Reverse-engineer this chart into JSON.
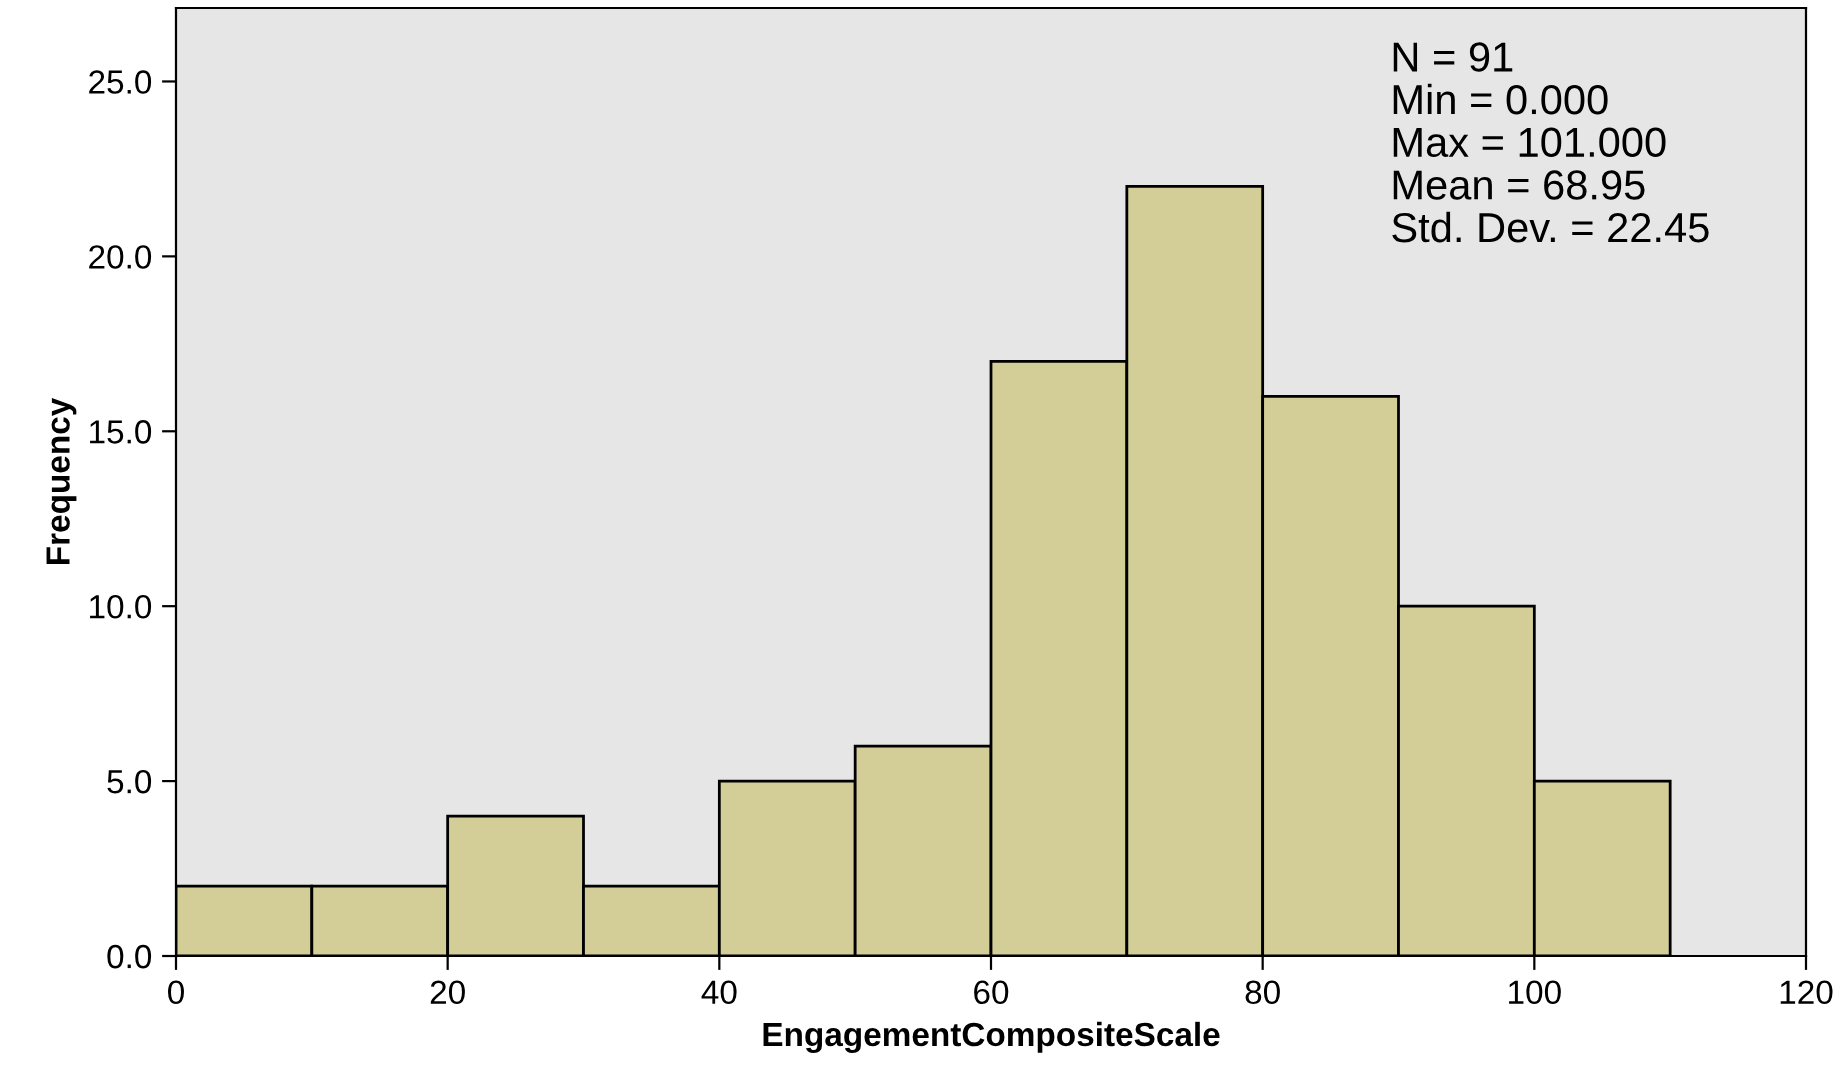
{
  "chart_data": {
    "type": "histogram",
    "xlabel": "EngagementCompositeScale",
    "ylabel": "Frequency",
    "bins": [
      0,
      10,
      20,
      30,
      40,
      50,
      60,
      70,
      80,
      90,
      100,
      110
    ],
    "values": [
      2,
      2,
      4,
      2,
      5,
      6,
      17,
      22,
      16,
      10,
      5
    ],
    "color": "#d3ce97",
    "xlim": [
      0,
      120
    ],
    "xticks": [
      0,
      20,
      40,
      60,
      80,
      100,
      120
    ],
    "ylim": [
      0,
      27.1
    ],
    "yticks": [
      {
        "value": 0,
        "label": "0.0"
      },
      {
        "value": 5,
        "label": "5.0"
      },
      {
        "value": 10,
        "label": "10.0"
      },
      {
        "value": 15,
        "label": "15.0"
      },
      {
        "value": 20,
        "label": "20.0"
      },
      {
        "value": 25,
        "label": "25.0"
      }
    ],
    "grid": false,
    "annotations": [
      "N = 91",
      "Min = 0.000",
      "Max = 101.000",
      "Mean = 68.95",
      "Std. Dev. = 22.45"
    ]
  }
}
